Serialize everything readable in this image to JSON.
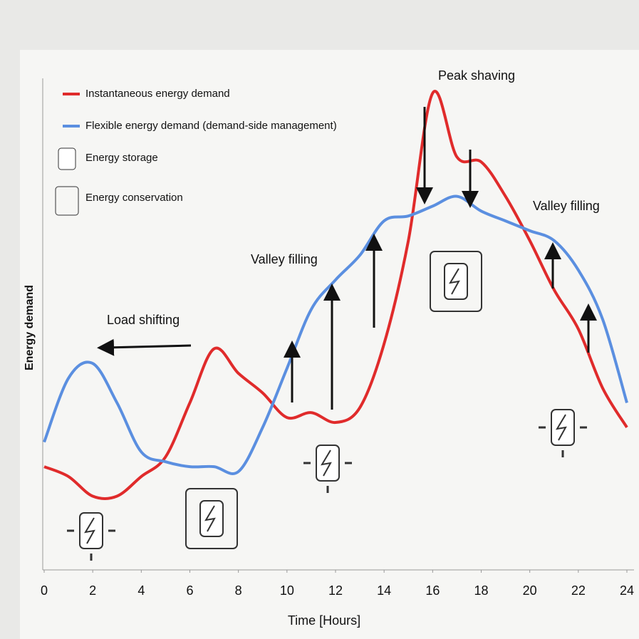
{
  "chart_data": {
    "type": "line",
    "x_label": "Time [Hours]",
    "y_label": "Energy demand",
    "x": [
      0,
      1,
      2,
      3,
      4,
      5,
      6,
      7,
      8,
      9,
      10,
      11,
      12,
      13,
      14,
      15,
      16,
      17,
      18,
      19,
      20,
      21,
      22,
      23,
      24
    ],
    "series": [
      {
        "name": "Instantaneous energy demand",
        "color": "#e02b2b",
        "values": [
          21,
          19,
          15,
          15,
          19,
          23,
          34,
          45,
          40,
          36,
          31,
          32,
          30,
          33,
          46,
          67,
          97,
          84,
          83,
          76,
          67,
          57,
          49,
          37,
          29
        ]
      },
      {
        "name": "Flexible energy demand (demand-side management)",
        "color": "#5b8fe0",
        "values": [
          26,
          39,
          42,
          34,
          24,
          22,
          21,
          21,
          20,
          29,
          41,
          53,
          59,
          64,
          71,
          72,
          74,
          76,
          73,
          71,
          69,
          67,
          61,
          51,
          34
        ]
      }
    ],
    "legend_extra": [
      "Energy storage",
      "Energy conservation"
    ],
    "annotations": [
      "Load shifting",
      "Valley filling",
      "Peak shaving",
      "Valley filling"
    ],
    "xlim": [
      0,
      24
    ],
    "xticks": [
      0,
      2,
      4,
      6,
      8,
      10,
      12,
      14,
      16,
      18,
      20,
      22,
      24
    ],
    "ylim": [
      0,
      100
    ]
  }
}
